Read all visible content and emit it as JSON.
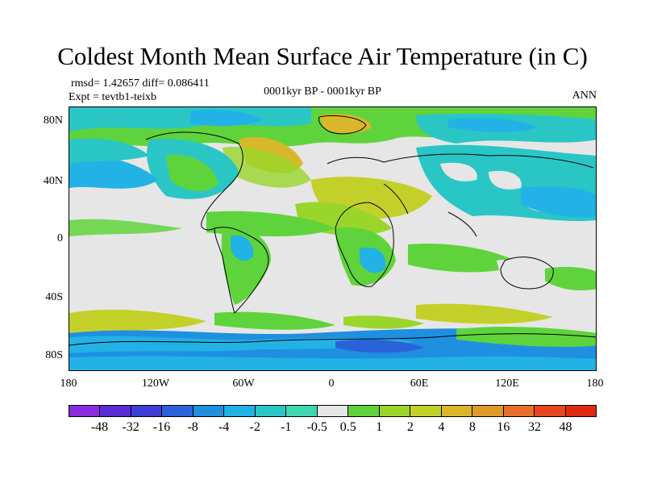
{
  "title": "Coldest Month Mean Surface Air Temperature (in C)",
  "stats": {
    "rmsd_diff": "rmsd= 1.42657 diff= 0.086411",
    "expt": "Expt = tevtb1-teixb",
    "period": "0001kyr BP - 0001kyr BP",
    "season": "ANN"
  },
  "axes": {
    "lat_labels": [
      "80N",
      "40N",
      "0",
      "40S",
      "80S"
    ],
    "lon_labels": [
      "180",
      "120W",
      "60W",
      "0",
      "60E",
      "120E",
      "180"
    ]
  },
  "colorbar": {
    "labels": [
      "-48",
      "-32",
      "-16",
      "-8",
      "-4",
      "-2",
      "-1",
      "-0.5",
      "0.5",
      "1",
      "2",
      "4",
      "8",
      "16",
      "32",
      "48"
    ],
    "colors": [
      "#8a2be2",
      "#5b2bd6",
      "#3e3ed4",
      "#2b62d9",
      "#1f8fe0",
      "#22b2e6",
      "#2ac6c6",
      "#3ed8b0",
      "#e6e6e6",
      "#5fd33c",
      "#9ad62a",
      "#c4d02a",
      "#d8b82a",
      "#e09a2a",
      "#e8702a",
      "#e8451f",
      "#e02a10"
    ]
  }
}
